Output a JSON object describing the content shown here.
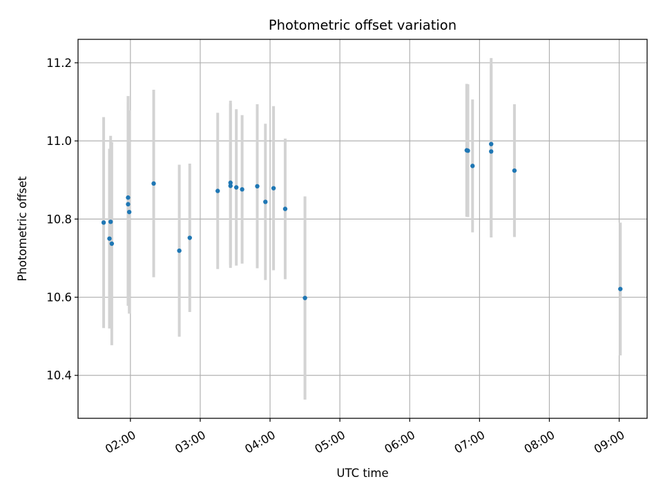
{
  "chart_data": {
    "type": "scatter",
    "title": "Photometric offset variation",
    "xlabel": "UTC time",
    "ylabel": "Photometric offset",
    "x_tick_labels": [
      "02:00",
      "03:00",
      "04:00",
      "05:00",
      "06:00",
      "07:00",
      "08:00",
      "09:00"
    ],
    "x_tick_hours": [
      2,
      3,
      4,
      5,
      6,
      7,
      8,
      9
    ],
    "y_ticks": [
      10.4,
      10.6,
      10.8,
      11.0,
      11.2
    ],
    "y_tick_labels": [
      "10.4",
      "10.6",
      "10.8",
      "11.0",
      "11.2"
    ],
    "xlim_hours": [
      1.25,
      9.4
    ],
    "ylim": [
      10.29,
      11.26
    ],
    "grid": true,
    "colors": {
      "point": "#1f77b4",
      "errorbar": "#d3d3d3",
      "grid": "#b0b0b0"
    },
    "series": [
      {
        "points": [
          {
            "x": "01:37",
            "y": 10.791,
            "err": 0.27
          },
          {
            "x": "01:42",
            "y": 10.75,
            "err": 0.23
          },
          {
            "x": "01:43",
            "y": 10.793,
            "err": 0.22
          },
          {
            "x": "01:44",
            "y": 10.737,
            "err": 0.26
          },
          {
            "x": "01:58",
            "y": 10.855,
            "err": 0.26
          },
          {
            "x": "01:58",
            "y": 10.838,
            "err": 0.26
          },
          {
            "x": "01:59",
            "y": 10.818,
            "err": 0.26
          },
          {
            "x": "02:20",
            "y": 10.891,
            "err": 0.24
          },
          {
            "x": "02:42",
            "y": 10.719,
            "err": 0.22
          },
          {
            "x": "02:51",
            "y": 10.752,
            "err": 0.19
          },
          {
            "x": "03:15",
            "y": 10.872,
            "err": 0.2
          },
          {
            "x": "03:26",
            "y": 10.885,
            "err": 0.21
          },
          {
            "x": "03:26",
            "y": 10.893,
            "err": 0.21
          },
          {
            "x": "03:31",
            "y": 10.881,
            "err": 0.2
          },
          {
            "x": "03:36",
            "y": 10.876,
            "err": 0.19
          },
          {
            "x": "03:49",
            "y": 10.884,
            "err": 0.21
          },
          {
            "x": "03:56",
            "y": 10.844,
            "err": 0.2
          },
          {
            "x": "04:03",
            "y": 10.879,
            "err": 0.21
          },
          {
            "x": "04:13",
            "y": 10.826,
            "err": 0.18
          },
          {
            "x": "04:30",
            "y": 10.598,
            "err": 0.26
          },
          {
            "x": "06:49",
            "y": 10.976,
            "err": 0.17
          },
          {
            "x": "06:50",
            "y": 10.975,
            "err": 0.17
          },
          {
            "x": "06:54",
            "y": 10.936,
            "err": 0.17
          },
          {
            "x": "07:10",
            "y": 10.992,
            "err": 0.22
          },
          {
            "x": "07:10",
            "y": 10.973,
            "err": 0.22
          },
          {
            "x": "07:30",
            "y": 10.924,
            "err": 0.17
          },
          {
            "x": "09:01",
            "y": 10.621,
            "err": 0.17
          }
        ]
      }
    ]
  }
}
